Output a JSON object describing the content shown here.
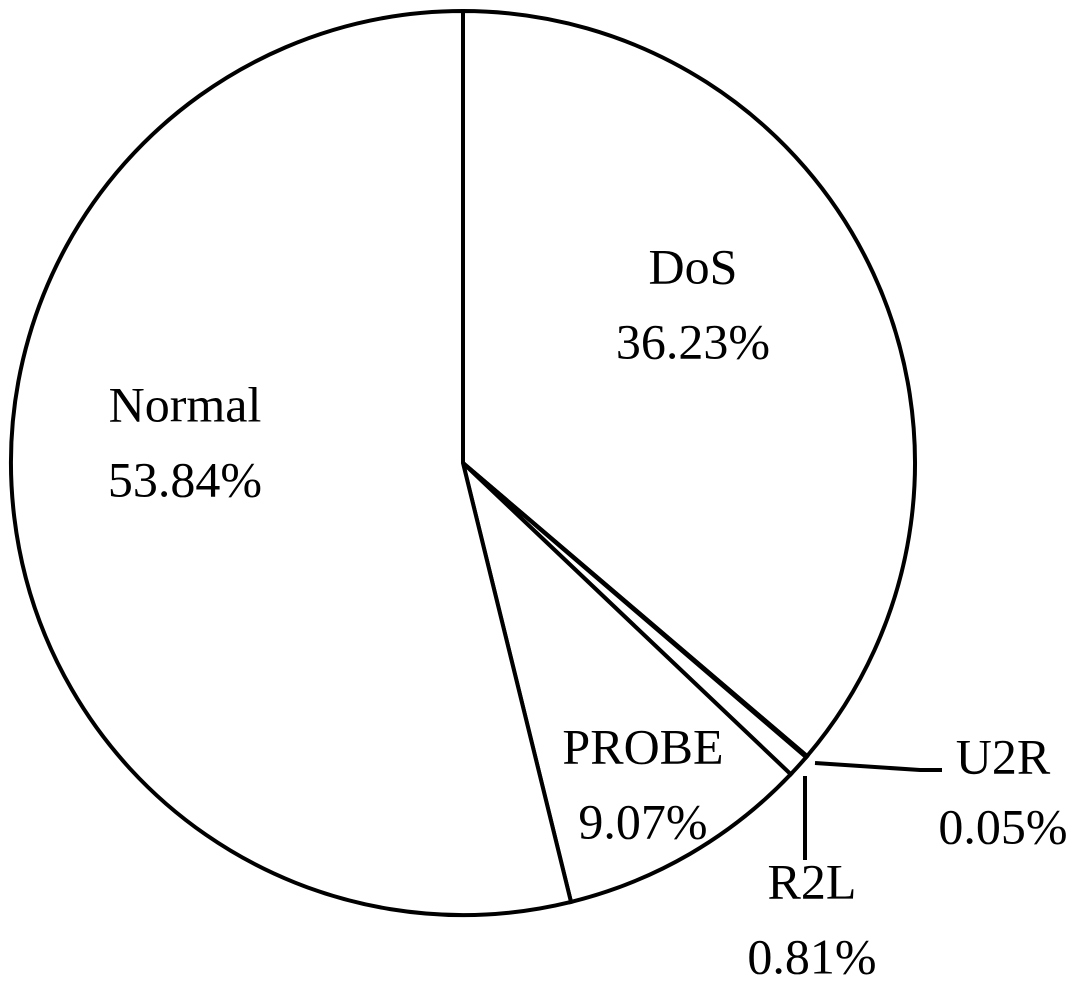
{
  "chart_data": {
    "type": "pie",
    "categories": [
      "DoS",
      "U2R",
      "R2L",
      "PROBE",
      "Normal"
    ],
    "values": [
      36.23,
      0.05,
      0.81,
      9.07,
      53.84
    ],
    "value_labels": [
      "36.23%",
      "0.05%",
      "0.81%",
      "9.07%",
      "53.84%"
    ],
    "colors": [
      "#ffffff",
      "#ffffff",
      "#ffffff",
      "#ffffff",
      "#ffffff"
    ]
  }
}
